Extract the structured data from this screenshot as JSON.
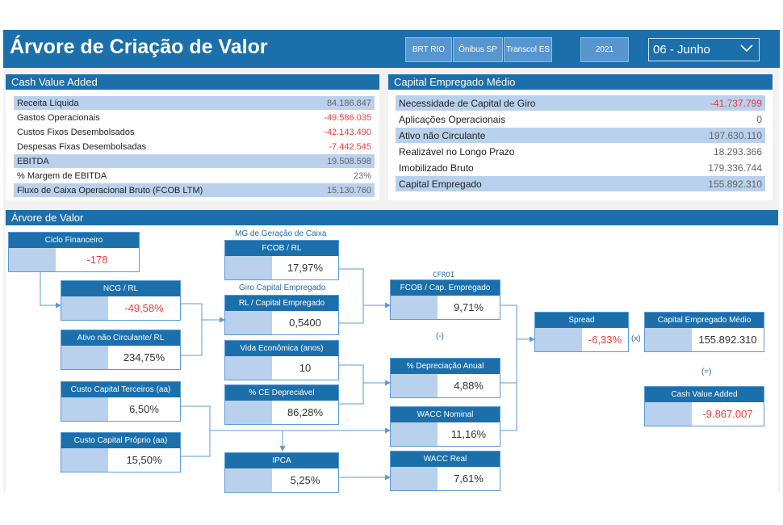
{
  "header": {
    "title": "Árvore de Criação de Valor",
    "filters": [
      "BRT RIO",
      "Ônibus SP",
      "Transcol ES"
    ],
    "year": "2021",
    "month": "06 - Junho"
  },
  "cva_panel": {
    "title": "Cash Value Added",
    "rows": [
      {
        "label": "Receita Líquida",
        "value": "84.186.847"
      },
      {
        "label": "Gastos Operacionais",
        "value": "-49.586.035"
      },
      {
        "label": "Custos Fixos Desembolsados",
        "value": "-42.143.490"
      },
      {
        "label": "Despesas Fixas Desembolsadas",
        "value": "-7.442.545"
      },
      {
        "label": "EBITDA",
        "value": "19.508.598"
      },
      {
        "label": "% Margem de EBITDA",
        "value": "23%"
      },
      {
        "label": "Fluxo de Caixa Operacional Bruto (FCOB LTM)",
        "value": "15.130.760"
      }
    ]
  },
  "capital_panel": {
    "title": "Capital Empregado Médio",
    "rows": [
      {
        "label": "Necessidade de Capital de Giro",
        "value": "-41.737.799"
      },
      {
        "label": "Aplicações Operacionais",
        "value": "0"
      },
      {
        "label": "Ativo não Circulante",
        "value": "197.630.110"
      },
      {
        "label": "Realizável no Longo Prazo",
        "value": "18.293.366"
      },
      {
        "label": "Imobilizado Bruto",
        "value": "179.336.744"
      },
      {
        "label": "Capital Empregado",
        "value": "155.892.310"
      }
    ]
  },
  "tree": {
    "title": "Árvore de Valor",
    "boxes": {
      "ciclo": {
        "title": "Ciclo Financeiro",
        "value": "-178"
      },
      "ncg": {
        "title": "NCG / RL",
        "value": "-49,58%"
      },
      "anc": {
        "title": "Ativo não Circulante/ RL",
        "value": "234,75%"
      },
      "cct": {
        "title": "Custo Capital Terceiros (aa)",
        "value": "6,50%"
      },
      "ccp": {
        "title": "Custo Capital Próprio (aa)",
        "value": "15,50%"
      },
      "fcob_rl": {
        "title": "FCOB / RL",
        "value": "17,97%"
      },
      "rl_cap": {
        "title": "RL / Capital Empregado",
        "value": "0,5400"
      },
      "vida": {
        "title": "Vida Econômica (anos)",
        "value": "10"
      },
      "ce_dep": {
        "title": "% CE Depreciável",
        "value": "86,28%"
      },
      "ipca": {
        "title": "IPCA",
        "value": "5,25%"
      },
      "fcob_cap": {
        "title": "FCOB / Cap. Empregado",
        "value": "9,71%"
      },
      "dep": {
        "title": "% Depreciação Anual",
        "value": "4,88%"
      },
      "wacc_nom": {
        "title": "WACC Nominal",
        "value": "11,16%"
      },
      "wacc_real": {
        "title": "WACC Real",
        "value": "7,61%"
      },
      "spread": {
        "title": "Spread",
        "value": "-6,33%"
      },
      "cap_med": {
        "title": "Capital Empregado Médio",
        "value": "155.892.310"
      },
      "cva": {
        "title": "Cash Value Added",
        "value": "-9.867.007"
      }
    },
    "labels": {
      "mg_geracao": "MG de Geração de Caixa",
      "giro_capital": "Giro Capital Empregado",
      "cfroi": "CFROI",
      "minus": "(-)",
      "times": "(x)",
      "equals": "(=)"
    }
  },
  "colors": {
    "header_blue": "#1b6fab",
    "highlight_row": "#b9d1ec",
    "negative": "#ee3b3b"
  }
}
